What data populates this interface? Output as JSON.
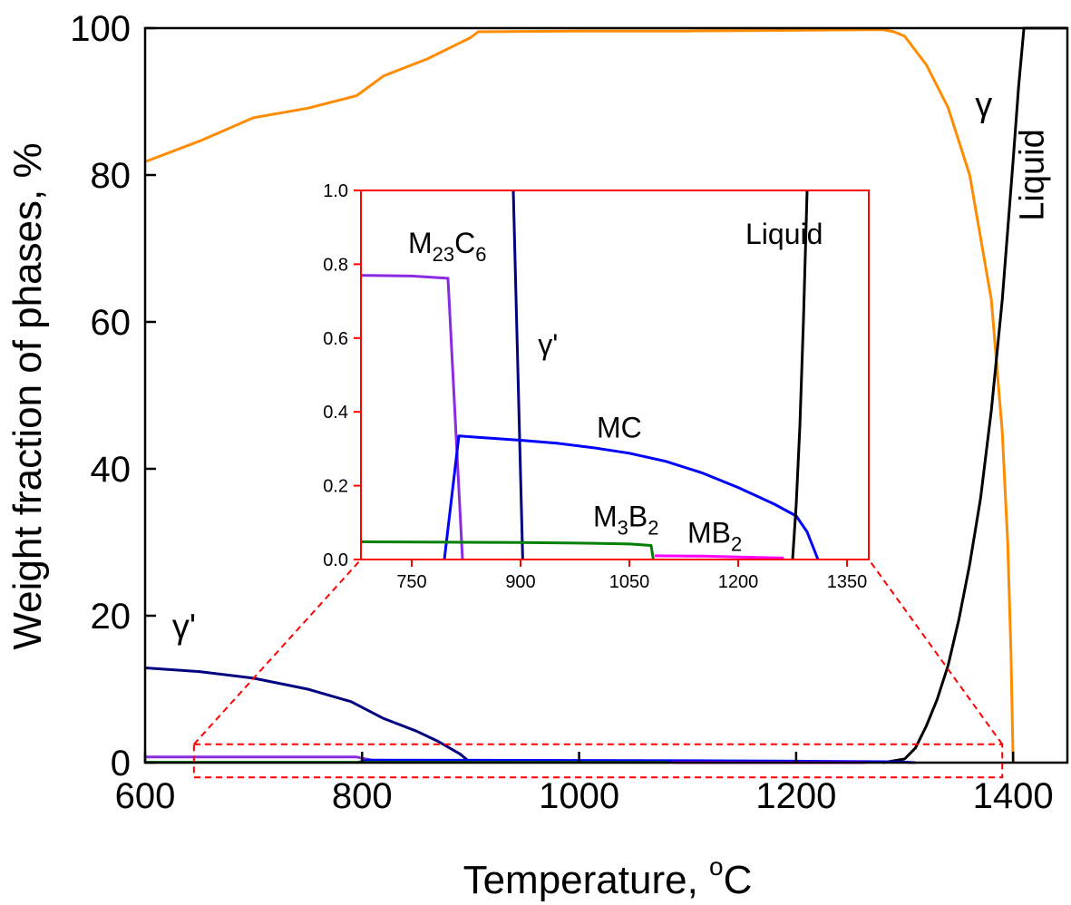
{
  "chart_data": [
    {
      "id": "main",
      "type": "line",
      "xlabel": "Temperature, °C",
      "xlabel_parts": {
        "text": "Temperature, ",
        "sup": "o",
        "unit": "C"
      },
      "ylabel": "Weight fraction of phases, %",
      "xlim": [
        600,
        1450
      ],
      "ylim": [
        0,
        100
      ],
      "xticks": [
        600,
        800,
        1000,
        1200,
        1400
      ],
      "yticks": [
        0,
        20,
        40,
        60,
        80,
        100
      ],
      "grid": false,
      "series": [
        {
          "name": "γ",
          "color": "#ff8c00",
          "points": [
            [
              600,
              81.8
            ],
            [
              650,
              84.6
            ],
            [
              700,
              87.8
            ],
            [
              750,
              89.1
            ],
            [
              795,
              90.8
            ],
            [
              820,
              93.5
            ],
            [
              860,
              95.8
            ],
            [
              900,
              98.7
            ],
            [
              907,
              99.5
            ],
            [
              1000,
              99.6
            ],
            [
              1100,
              99.6
            ],
            [
              1200,
              99.7
            ],
            [
              1280,
              99.8
            ],
            [
              1290,
              99.5
            ],
            [
              1300,
              98.9
            ],
            [
              1320,
              95.0
            ],
            [
              1340,
              89.2
            ],
            [
              1360,
              80.0
            ],
            [
              1380,
              63.0
            ],
            [
              1390,
              45.0
            ],
            [
              1395,
              30.0
            ],
            [
              1398,
              15.0
            ],
            [
              1400,
              0
            ]
          ]
        },
        {
          "name": "Liquid",
          "color": "#000000",
          "points": [
            [
              1280,
              0
            ],
            [
              1300,
              0.5
            ],
            [
              1310,
              2.0
            ],
            [
              1320,
              5.0
            ],
            [
              1330,
              8.6
            ],
            [
              1340,
              13.2
            ],
            [
              1350,
              19.5
            ],
            [
              1360,
              27.0
            ],
            [
              1370,
              36.0
            ],
            [
              1380,
              48.0
            ],
            [
              1390,
              63.0
            ],
            [
              1400,
              82.0
            ],
            [
              1405,
              92.0
            ],
            [
              1410,
              100
            ],
            [
              1450,
              100
            ]
          ]
        },
        {
          "name": "γ'",
          "color": "#000080",
          "points": [
            [
              600,
              12.9
            ],
            [
              650,
              12.4
            ],
            [
              700,
              11.5
            ],
            [
              750,
              10.0
            ],
            [
              790,
              8.3
            ],
            [
              820,
              6.0
            ],
            [
              850,
              4.3
            ],
            [
              870,
              2.9
            ],
            [
              890,
              1.2
            ],
            [
              900,
              0
            ]
          ]
        },
        {
          "name": "M23C6",
          "color": "#8a2be2",
          "points": [
            [
              600,
              0.77
            ],
            [
              795,
              0.76
            ],
            [
              820,
              0
            ]
          ]
        },
        {
          "name": "MC",
          "color": "#0000ff",
          "points": [
            [
              795,
              0
            ],
            [
              805,
              0.33
            ],
            [
              900,
              0.32
            ],
            [
              1000,
              0.3
            ],
            [
              1100,
              0.26
            ],
            [
              1200,
              0.2
            ],
            [
              1280,
              0.12
            ],
            [
              1300,
              0.06
            ],
            [
              1310,
              0
            ]
          ]
        },
        {
          "name": "M3B2",
          "color": "#008000",
          "points": [
            [
              600,
              0.05
            ],
            [
              900,
              0.05
            ],
            [
              1080,
              0.04
            ],
            [
              1083,
              0
            ]
          ]
        },
        {
          "name": "MB2",
          "color": "#ff00ff",
          "points": [
            [
              1085,
              0.01
            ],
            [
              1263,
              0.005
            ]
          ]
        }
      ],
      "labels": [
        {
          "text": "γ",
          "at": [
            1365,
            88
          ]
        },
        {
          "text": "Liquid",
          "at": [
            1428,
            80
          ]
        },
        {
          "text": "γ'",
          "at": [
            625,
            17
          ]
        }
      ]
    },
    {
      "id": "inset",
      "type": "line",
      "xlabel": "",
      "ylabel": "",
      "xlim": [
        680,
        1380
      ],
      "ylim": [
        0,
        1.0
      ],
      "xticks": [
        750,
        900,
        1050,
        1200,
        1350
      ],
      "yticks": [
        "0.0",
        "0.2",
        "0.4",
        "0.6",
        "0.8",
        "1.0"
      ],
      "frame_color": "#ff0000",
      "grid": false,
      "series": [
        {
          "name": "M23C6",
          "color": "#8a2be2",
          "points": [
            [
              680,
              0.77
            ],
            [
              750,
              0.768
            ],
            [
              800,
              0.762
            ],
            [
              820,
              0
            ]
          ]
        },
        {
          "name": "γ'",
          "color": "#000080",
          "points": [
            [
              890,
              1.0
            ],
            [
              903,
              0
            ]
          ]
        },
        {
          "name": "MC",
          "color": "#0000ff",
          "points": [
            [
              795,
              0
            ],
            [
              815,
              0.335
            ],
            [
              850,
              0.33
            ],
            [
              900,
              0.323
            ],
            [
              950,
              0.315
            ],
            [
              1000,
              0.303
            ],
            [
              1050,
              0.288
            ],
            [
              1100,
              0.266
            ],
            [
              1150,
              0.235
            ],
            [
              1200,
              0.195
            ],
            [
              1250,
              0.15
            ],
            [
              1280,
              0.118
            ],
            [
              1295,
              0.075
            ],
            [
              1310,
              0
            ]
          ]
        },
        {
          "name": "Liquid",
          "color": "#000000",
          "points": [
            [
              1275,
              0
            ],
            [
              1280,
              0.15
            ],
            [
              1285,
              0.36
            ],
            [
              1290,
              0.65
            ],
            [
              1295,
              1.0
            ]
          ]
        },
        {
          "name": "M3B2",
          "color": "#008000",
          "points": [
            [
              680,
              0.048
            ],
            [
              800,
              0.047
            ],
            [
              900,
              0.046
            ],
            [
              1000,
              0.044
            ],
            [
              1050,
              0.042
            ],
            [
              1080,
              0.038
            ],
            [
              1083,
              0
            ]
          ]
        },
        {
          "name": "MB2",
          "color": "#ff00ff",
          "points": [
            [
              1085,
              0.01
            ],
            [
              1150,
              0.009
            ],
            [
              1200,
              0.007
            ],
            [
              1263,
              0.004
            ]
          ]
        }
      ],
      "labels": [
        {
          "base": "M",
          "sub1": "23",
          "mid": "C",
          "sub2": "6",
          "at": [
            745,
            0.83
          ]
        },
        {
          "base": "γ'",
          "at": [
            924,
            0.555
          ]
        },
        {
          "base": "Liquid",
          "at": [
            1210,
            0.855
          ]
        },
        {
          "base": "MC",
          "at": [
            1005,
            0.33
          ]
        },
        {
          "base": "M",
          "sub1": "3",
          "mid": "B",
          "sub2": "2",
          "at": [
            1000,
            0.09
          ]
        },
        {
          "base": "MB",
          "sub1": "2",
          "at": [
            1130,
            0.045
          ]
        }
      ]
    }
  ],
  "zoom_region": {
    "x": [
      645,
      1390
    ],
    "y": [
      -2,
      2.5
    ],
    "color": "#ff0000",
    "style": "dashed"
  }
}
